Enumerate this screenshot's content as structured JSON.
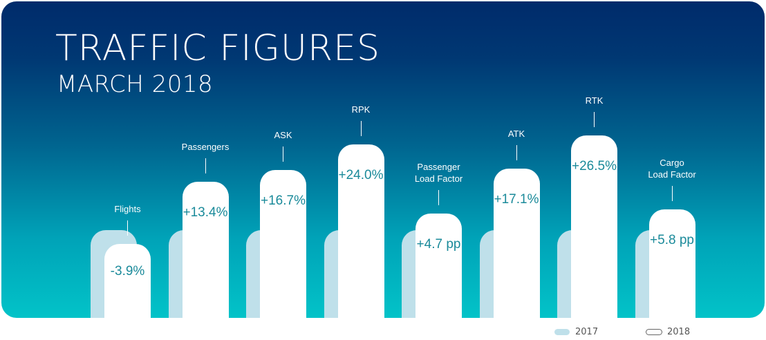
{
  "title": "TRAFFIC FIGURES",
  "subtitle": "MARCH 2018",
  "legend": {
    "label_2017": "2017",
    "label_2018": "2018"
  },
  "colors": {
    "background_top": "#002b6b",
    "background_bottom": "#02c3c8",
    "bar_2017": "#bfe0ea",
    "bar_2018": "#ffffff",
    "value_text": "#1a8a9a"
  },
  "chart_data": {
    "type": "bar",
    "title": "TRAFFIC FIGURES",
    "subtitle": "MARCH 2018",
    "categories": [
      "Flights",
      "Passengers",
      "ASK",
      "RPK",
      "Passenger Load Factor",
      "ATK",
      "RTK",
      "Cargo Load Factor"
    ],
    "category_labels": [
      [
        "Flights"
      ],
      [
        "Passengers"
      ],
      [
        "ASK"
      ],
      [
        "RPK"
      ],
      [
        "Passenger",
        "Load Factor"
      ],
      [
        "ATK"
      ],
      [
        "RTK"
      ],
      [
        "Cargo",
        "Load Factor"
      ]
    ],
    "changes": [
      "-3.9%",
      "+13.4%",
      "+16.7%",
      "+24.0%",
      "+4.7 pp",
      "+17.1%",
      "+26.5%",
      "+5.8 pp"
    ],
    "series": [
      {
        "name": "2017",
        "values": [
          100,
          100,
          100,
          100,
          100,
          100,
          100,
          100
        ]
      },
      {
        "name": "2018",
        "values": [
          96.1,
          113.4,
          116.7,
          124.0,
          104.7,
          117.1,
          126.5,
          105.8
        ]
      }
    ],
    "legend_position": "bottom-right",
    "grid": false
  }
}
